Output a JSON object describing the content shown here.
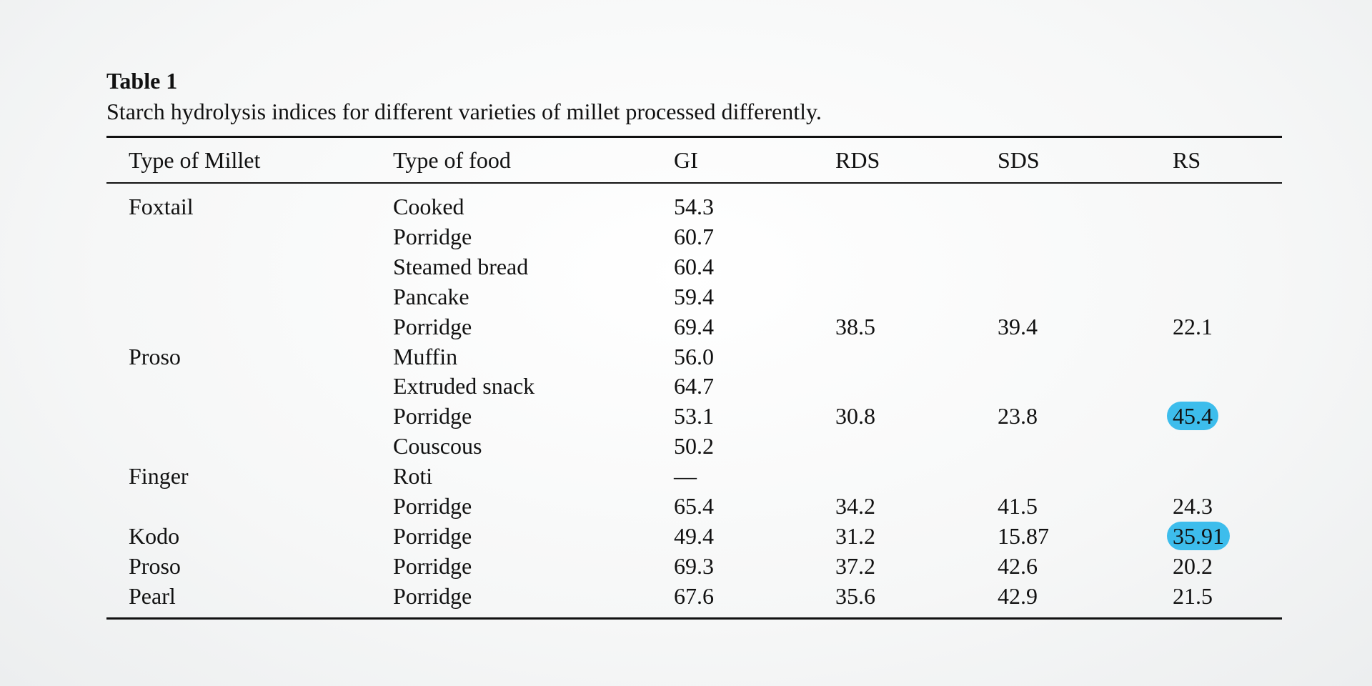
{
  "header": {
    "title": "Table 1",
    "caption": "Starch hydrolysis indices for different varieties of millet processed differently."
  },
  "table": {
    "columns": [
      "Type of Millet",
      "Type of food",
      "GI",
      "RDS",
      "SDS",
      "RS"
    ],
    "rows": [
      [
        "Foxtail",
        "Cooked",
        "54.3",
        null,
        null,
        null
      ],
      [
        null,
        "Porridge",
        "60.7",
        null,
        null,
        null
      ],
      [
        null,
        "Steamed bread",
        "60.4",
        null,
        null,
        null
      ],
      [
        null,
        "Pancake",
        "59.4",
        null,
        null,
        null
      ],
      [
        null,
        "Porridge",
        "69.4",
        "38.5",
        "39.4",
        "22.1"
      ],
      [
        "Proso",
        "Muffin",
        "56.0",
        null,
        null,
        null
      ],
      [
        null,
        "Extruded snack",
        "64.7",
        null,
        null,
        null
      ],
      [
        null,
        "Porridge",
        "53.1",
        "30.8",
        "23.8",
        "45.4"
      ],
      [
        null,
        "Couscous",
        "50.2",
        null,
        null,
        null
      ],
      [
        "Finger",
        "Roti",
        "—",
        null,
        null,
        null
      ],
      [
        null,
        "Porridge",
        "65.4",
        "34.2",
        "41.5",
        "24.3"
      ],
      [
        "Kodo",
        "Porridge",
        "49.4",
        "31.2",
        "15.87",
        "35.91"
      ],
      [
        "Proso",
        "Porridge",
        "69.3",
        "37.2",
        "42.6",
        "20.2"
      ],
      [
        "Pearl",
        "Porridge",
        "67.6",
        "35.6",
        "42.9",
        "21.5"
      ]
    ]
  }
}
